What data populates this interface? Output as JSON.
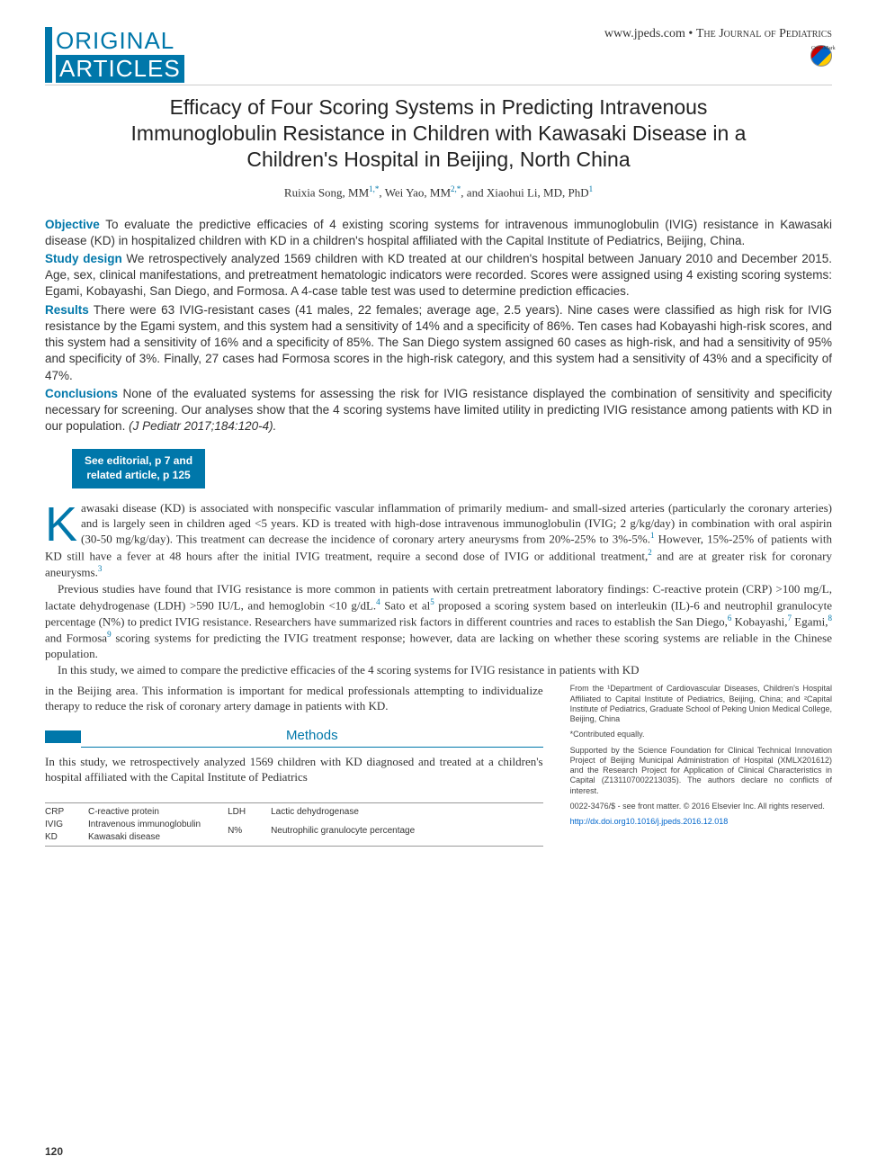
{
  "header": {
    "section_line1": "ORIGINAL",
    "section_line2": "ARTICLES",
    "url": "www.jpeds.com",
    "separator": " • ",
    "journal_name": "The Journal of Pediatrics",
    "crossmark_label": "CrossMark"
  },
  "title": "Efficacy of Four Scoring Systems in Predicting Intravenous Immunoglobulin Resistance in Children with Kawasaki Disease in a Children's Hospital in Beijing, North China",
  "authors": {
    "a1_name": "Ruixia Song, MM",
    "a1_aff": "1,*",
    "a2_name": "Wei Yao, MM",
    "a2_aff": "2,*",
    "a3_name": "Xiaohui Li, MD, PhD",
    "a3_aff": "1",
    "sep": ", ",
    "and": ", and "
  },
  "abstract": {
    "objective_label": "Objective",
    "objective_text": " To evaluate the predictive efficacies of 4 existing scoring systems for intravenous immunoglobulin (IVIG) resistance in Kawasaki disease (KD) in hospitalized children with KD in a children's hospital affiliated with the Capital Institute of Pediatrics, Beijing, China.",
    "design_label": "Study design",
    "design_text": " We retrospectively analyzed 1569 children with KD treated at our children's hospital between January 2010 and December 2015. Age, sex, clinical manifestations, and pretreatment hematologic indicators were recorded. Scores were assigned using 4 existing scoring systems: Egami, Kobayashi, San Diego, and Formosa. A 4-case table test was used to determine prediction efficacies.",
    "results_label": "Results",
    "results_text": " There were 63 IVIG-resistant cases (41 males, 22 females; average age, 2.5 years). Nine cases were classified as high risk for IVIG resistance by the Egami system, and this system had a sensitivity of 14% and a specificity of 86%. Ten cases had Kobayashi high-risk scores, and this system had a sensitivity of 16% and a specificity of 85%. The San Diego system assigned 60 cases as high-risk, and had a sensitivity of 95% and specificity of 3%. Finally, 27 cases had Formosa scores in the high-risk category, and this system had a sensitivity of 43% and a specificity of 47%.",
    "conclusions_label": "Conclusions",
    "conclusions_text": " None of the evaluated systems for assessing the risk for IVIG resistance displayed the combination of sensitivity and specificity necessary for screening. Our analyses show that the 4 scoring systems have limited utility in predicting IVIG resistance among patients with KD in our population. ",
    "citation": "(J Pediatr 2017;184:120-4)."
  },
  "editorial_box": "See editorial, p 7 and\nrelated article, p 125",
  "body": {
    "dropcap": "K",
    "p1": "awasaki disease (KD) is associated with nonspecific vascular inflammation of primarily medium- and small-sized arteries (particularly the coronary arteries) and is largely seen in children aged <5 years. KD is treated with high-dose intravenous immunoglobulin (IVIG; 2 g/kg/day) in combination with oral aspirin (30-50 mg/kg/day). This treatment can decrease the incidence of coronary artery aneurysms from 20%-25% to 3%-5%.",
    "ref1": "1",
    "p1b": " However, 15%-25% of patients with KD still have a fever at 48 hours after the initial IVIG treatment, require a second dose of IVIG or additional treatment,",
    "ref2": "2",
    "p1c": " and are at greater risk for coronary aneurysms.",
    "ref3": "3",
    "p2a": "Previous studies have found that IVIG resistance is more common in patients with certain pretreatment laboratory findings: C-reactive protein (CRP) >100 mg/L, lactate dehydrogenase (LDH) >590 IU/L, and hemoglobin <10 g/dL.",
    "ref4": "4",
    "p2b": " Sato et al",
    "ref5": "5",
    "p2c": " proposed a scoring system based on interleukin (IL)-6 and neutrophil granulocyte percentage (N%) to predict IVIG resistance. Researchers have summarized risk factors in different countries and races to establish the San Diego,",
    "ref6": "6",
    "p2d": " Kobayashi,",
    "ref7": "7",
    "p2e": " Egami,",
    "ref8": "8",
    "p2f": " and Formosa",
    "ref9": "9",
    "p2g": " scoring systems for predicting the IVIG treatment response; however, data are lacking on whether these scoring systems are reliable in the Chinese population.",
    "p3": "In this study, we aimed to compare the predictive efficacies of the 4 scoring systems for IVIG resistance in patients with KD in the Beijing area. This information is important for medical professionals attempting to individualize therapy to reduce the risk of coronary artery damage in patients with KD."
  },
  "methods": {
    "heading": "Methods",
    "p1": "In this study, we retrospectively analyzed 1569 children with KD diagnosed and treated at a children's hospital affiliated with the Capital Institute of Pediatrics"
  },
  "abbreviations": {
    "col1": [
      [
        "CRP",
        "C-reactive protein"
      ],
      [
        "IVIG",
        "Intravenous immunoglobulin"
      ],
      [
        "KD",
        "Kawasaki disease"
      ]
    ],
    "col2": [
      [
        "LDH",
        "Lactic dehydrogenase"
      ],
      [
        "N%",
        "Neutrophilic granulocyte percentage"
      ]
    ]
  },
  "footer": {
    "affiliations": "From the ¹Department of Cardiovascular Diseases, Children's Hospital Affiliated to Capital Institute of Pediatrics, Beijing, China; and ²Capital Institute of Pediatrics, Graduate School of Peking Union Medical College, Beijing, China",
    "equal": "*Contributed equally.",
    "funding": "Supported by the Science Foundation for Clinical Technical Innovation Project of Beijing Municipal Administration of Hospital (XMLX201612) and the Research Project for Application of Clinical Characteristics in Capital (Z131107002213035). The authors declare no conflicts of interest.",
    "copyright": "0022-3476/$ - see front matter. © 2016 Elsevier Inc. All rights reserved.",
    "doi": "http://dx.doi.org10.1016/j.jpeds.2016.12.018"
  },
  "page_number": "120",
  "colors": {
    "accent": "#0077aa",
    "text": "#333333",
    "link": "#0066cc"
  }
}
